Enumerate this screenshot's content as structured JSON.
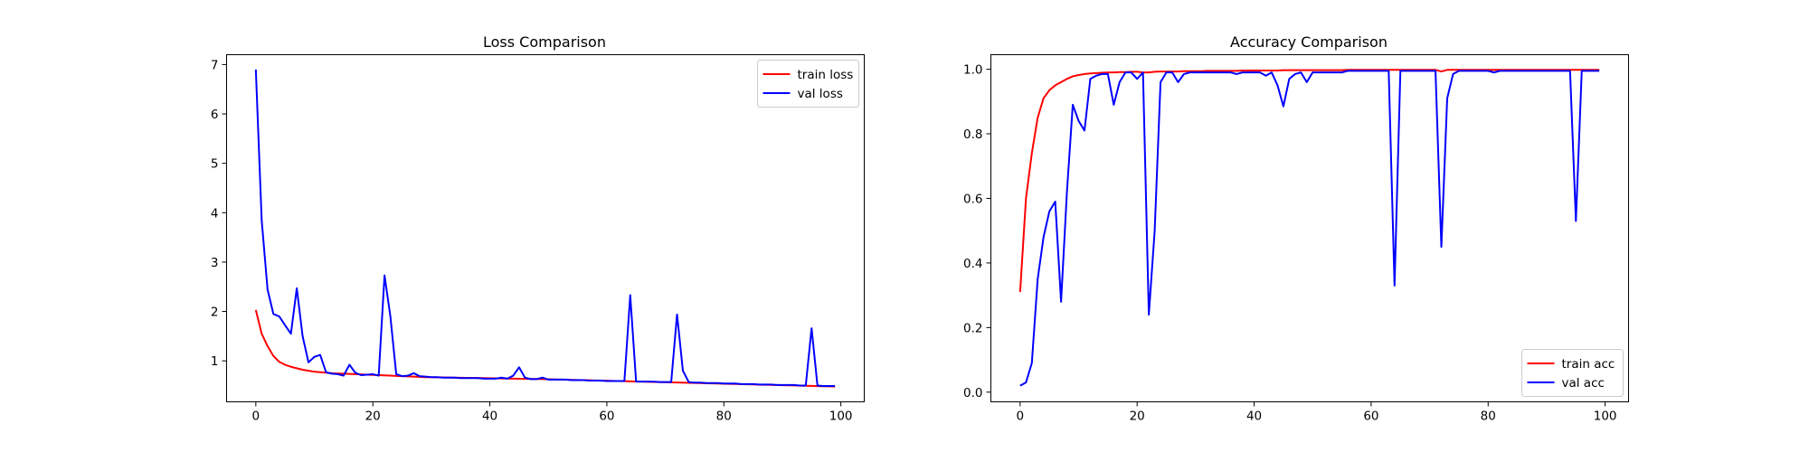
{
  "chart_data": [
    {
      "type": "line",
      "title": "Loss Comparison",
      "xlabel": "",
      "ylabel": "",
      "xlim": [
        -5,
        104
      ],
      "ylim": [
        0.17,
        7.2
      ],
      "xticks": [
        0,
        20,
        40,
        60,
        80,
        100
      ],
      "yticks": [
        1,
        2,
        3,
        4,
        5,
        6,
        7
      ],
      "grid": false,
      "legend_position": "top-right",
      "series": [
        {
          "name": "train loss",
          "color": "#ff0000",
          "x": [
            0,
            1,
            2,
            3,
            4,
            5,
            6,
            7,
            8,
            9,
            10,
            11,
            12,
            13,
            14,
            15,
            16,
            17,
            18,
            19,
            20,
            21,
            22,
            23,
            24,
            25,
            26,
            27,
            28,
            29,
            30,
            31,
            32,
            33,
            34,
            35,
            36,
            37,
            38,
            39,
            40,
            41,
            42,
            43,
            44,
            45,
            46,
            47,
            48,
            49,
            50,
            51,
            52,
            53,
            54,
            55,
            56,
            57,
            58,
            59,
            60,
            61,
            62,
            63,
            64,
            65,
            66,
            67,
            68,
            69,
            70,
            71,
            72,
            73,
            74,
            75,
            76,
            77,
            78,
            79,
            80,
            81,
            82,
            83,
            84,
            85,
            86,
            87,
            88,
            89,
            90,
            91,
            92,
            93,
            94,
            95,
            96,
            97,
            98,
            99
          ],
          "y": [
            2.03,
            1.55,
            1.3,
            1.1,
            0.98,
            0.92,
            0.88,
            0.85,
            0.82,
            0.8,
            0.78,
            0.77,
            0.76,
            0.75,
            0.745,
            0.74,
            0.735,
            0.73,
            0.725,
            0.72,
            0.715,
            0.71,
            0.705,
            0.7,
            0.695,
            0.69,
            0.685,
            0.68,
            0.675,
            0.67,
            0.668,
            0.666,
            0.664,
            0.662,
            0.66,
            0.658,
            0.656,
            0.654,
            0.652,
            0.65,
            0.648,
            0.646,
            0.644,
            0.642,
            0.64,
            0.638,
            0.636,
            0.634,
            0.632,
            0.63,
            0.627,
            0.624,
            0.621,
            0.618,
            0.615,
            0.612,
            0.609,
            0.606,
            0.603,
            0.6,
            0.597,
            0.594,
            0.591,
            0.588,
            0.585,
            0.582,
            0.579,
            0.576,
            0.573,
            0.57,
            0.567,
            0.564,
            0.561,
            0.558,
            0.555,
            0.552,
            0.549,
            0.546,
            0.543,
            0.54,
            0.537,
            0.534,
            0.531,
            0.528,
            0.525,
            0.522,
            0.519,
            0.516,
            0.513,
            0.51,
            0.507,
            0.504,
            0.501,
            0.498,
            0.495,
            0.492,
            0.489,
            0.486,
            0.483,
            0.48
          ]
        },
        {
          "name": "val loss",
          "color": "#0000ff",
          "x": [
            0,
            1,
            2,
            3,
            4,
            5,
            6,
            7,
            8,
            9,
            10,
            11,
            12,
            13,
            14,
            15,
            16,
            17,
            18,
            19,
            20,
            21,
            22,
            23,
            24,
            25,
            26,
            27,
            28,
            29,
            30,
            31,
            32,
            33,
            34,
            35,
            36,
            37,
            38,
            39,
            40,
            41,
            42,
            43,
            44,
            45,
            46,
            47,
            48,
            49,
            50,
            51,
            52,
            53,
            54,
            55,
            56,
            57,
            58,
            59,
            60,
            61,
            62,
            63,
            64,
            65,
            66,
            67,
            68,
            69,
            70,
            71,
            72,
            73,
            74,
            75,
            76,
            77,
            78,
            79,
            80,
            81,
            82,
            83,
            84,
            85,
            86,
            87,
            88,
            89,
            90,
            91,
            92,
            93,
            94,
            95,
            96,
            97,
            98,
            99
          ],
          "y": [
            6.9,
            3.85,
            2.45,
            1.95,
            1.9,
            1.72,
            1.55,
            2.47,
            1.5,
            0.97,
            1.08,
            1.12,
            0.77,
            0.74,
            0.73,
            0.7,
            0.92,
            0.76,
            0.71,
            0.72,
            0.73,
            0.7,
            2.73,
            1.9,
            0.73,
            0.69,
            0.7,
            0.75,
            0.69,
            0.68,
            0.67,
            0.67,
            0.66,
            0.66,
            0.66,
            0.65,
            0.65,
            0.65,
            0.65,
            0.64,
            0.64,
            0.64,
            0.66,
            0.64,
            0.7,
            0.87,
            0.66,
            0.63,
            0.63,
            0.66,
            0.62,
            0.62,
            0.62,
            0.62,
            0.61,
            0.61,
            0.61,
            0.6,
            0.6,
            0.6,
            0.59,
            0.59,
            0.59,
            0.59,
            2.33,
            0.58,
            0.58,
            0.58,
            0.58,
            0.57,
            0.57,
            0.57,
            1.94,
            0.8,
            0.57,
            0.56,
            0.56,
            0.55,
            0.55,
            0.55,
            0.54,
            0.54,
            0.54,
            0.53,
            0.53,
            0.53,
            0.52,
            0.52,
            0.52,
            0.51,
            0.51,
            0.51,
            0.51,
            0.5,
            0.5,
            1.66,
            0.5,
            0.49,
            0.49,
            0.49
          ]
        }
      ]
    },
    {
      "type": "line",
      "title": "Accuracy Comparison",
      "xlabel": "",
      "ylabel": "",
      "xlim": [
        -5,
        104
      ],
      "ylim": [
        -0.03,
        1.045
      ],
      "xticks": [
        0,
        20,
        40,
        60,
        80,
        100
      ],
      "yticks": [
        0.0,
        0.2,
        0.4,
        0.6,
        0.8,
        1.0
      ],
      "ytick_labels": [
        "0.0",
        "0.2",
        "0.4",
        "0.6",
        "0.8",
        "1.0"
      ],
      "grid": false,
      "legend_position": "bottom-right",
      "series": [
        {
          "name": "train acc",
          "color": "#ff0000",
          "x": [
            0,
            1,
            2,
            3,
            4,
            5,
            6,
            7,
            8,
            9,
            10,
            11,
            12,
            13,
            14,
            15,
            16,
            17,
            18,
            19,
            20,
            21,
            22,
            23,
            24,
            25,
            26,
            27,
            28,
            29,
            30,
            31,
            32,
            33,
            34,
            35,
            36,
            37,
            38,
            39,
            40,
            41,
            42,
            43,
            44,
            45,
            46,
            47,
            48,
            49,
            50,
            51,
            52,
            53,
            54,
            55,
            56,
            57,
            58,
            59,
            60,
            61,
            62,
            63,
            64,
            65,
            66,
            67,
            68,
            69,
            70,
            71,
            72,
            73,
            74,
            75,
            76,
            77,
            78,
            79,
            80,
            81,
            82,
            83,
            84,
            85,
            86,
            87,
            88,
            89,
            90,
            91,
            92,
            93,
            94,
            95,
            96,
            97,
            98,
            99
          ],
          "y": [
            0.31,
            0.6,
            0.74,
            0.85,
            0.91,
            0.935,
            0.95,
            0.96,
            0.97,
            0.978,
            0.982,
            0.985,
            0.987,
            0.988,
            0.989,
            0.99,
            0.99,
            0.991,
            0.991,
            0.992,
            0.992,
            0.99,
            0.99,
            0.992,
            0.993,
            0.993,
            0.993,
            0.993,
            0.994,
            0.994,
            0.994,
            0.994,
            0.995,
            0.995,
            0.995,
            0.995,
            0.995,
            0.995,
            0.996,
            0.996,
            0.996,
            0.996,
            0.996,
            0.996,
            0.996,
            0.997,
            0.997,
            0.997,
            0.997,
            0.997,
            0.997,
            0.997,
            0.997,
            0.997,
            0.997,
            0.997,
            0.998,
            0.998,
            0.998,
            0.998,
            0.998,
            0.998,
            0.998,
            0.998,
            0.998,
            0.998,
            0.998,
            0.998,
            0.998,
            0.998,
            0.998,
            0.998,
            0.993,
            0.998,
            0.998,
            0.998,
            0.998,
            0.998,
            0.998,
            0.998,
            0.998,
            0.998,
            0.998,
            0.998,
            0.998,
            0.998,
            0.998,
            0.998,
            0.998,
            0.998,
            0.998,
            0.998,
            0.998,
            0.998,
            0.998,
            0.998,
            0.998,
            0.998,
            0.998,
            0.998
          ]
        },
        {
          "name": "val acc",
          "color": "#0000ff",
          "x": [
            0,
            1,
            2,
            3,
            4,
            5,
            6,
            7,
            8,
            9,
            10,
            11,
            12,
            13,
            14,
            15,
            16,
            17,
            18,
            19,
            20,
            21,
            22,
            23,
            24,
            25,
            26,
            27,
            28,
            29,
            30,
            31,
            32,
            33,
            34,
            35,
            36,
            37,
            38,
            39,
            40,
            41,
            42,
            43,
            44,
            45,
            46,
            47,
            48,
            49,
            50,
            51,
            52,
            53,
            54,
            55,
            56,
            57,
            58,
            59,
            60,
            61,
            62,
            63,
            64,
            65,
            66,
            67,
            68,
            69,
            70,
            71,
            72,
            73,
            74,
            75,
            76,
            77,
            78,
            79,
            80,
            81,
            82,
            83,
            84,
            85,
            86,
            87,
            88,
            89,
            90,
            91,
            92,
            93,
            94,
            95,
            96,
            97,
            98,
            99
          ],
          "y": [
            0.02,
            0.03,
            0.09,
            0.35,
            0.48,
            0.56,
            0.59,
            0.28,
            0.62,
            0.89,
            0.84,
            0.81,
            0.97,
            0.98,
            0.985,
            0.985,
            0.89,
            0.96,
            0.99,
            0.99,
            0.97,
            0.99,
            0.24,
            0.5,
            0.96,
            0.99,
            0.99,
            0.96,
            0.985,
            0.99,
            0.99,
            0.99,
            0.99,
            0.99,
            0.99,
            0.99,
            0.99,
            0.985,
            0.99,
            0.99,
            0.99,
            0.99,
            0.98,
            0.99,
            0.95,
            0.885,
            0.97,
            0.985,
            0.99,
            0.96,
            0.99,
            0.99,
            0.99,
            0.99,
            0.99,
            0.99,
            0.995,
            0.995,
            0.995,
            0.995,
            0.995,
            0.995,
            0.995,
            0.995,
            0.33,
            0.995,
            0.995,
            0.995,
            0.995,
            0.995,
            0.995,
            0.995,
            0.45,
            0.91,
            0.985,
            0.995,
            0.995,
            0.995,
            0.995,
            0.995,
            0.995,
            0.99,
            0.995,
            0.995,
            0.995,
            0.995,
            0.995,
            0.995,
            0.995,
            0.995,
            0.995,
            0.995,
            0.995,
            0.995,
            0.995,
            0.53,
            0.995,
            0.995,
            0.995,
            0.995
          ]
        }
      ]
    }
  ]
}
